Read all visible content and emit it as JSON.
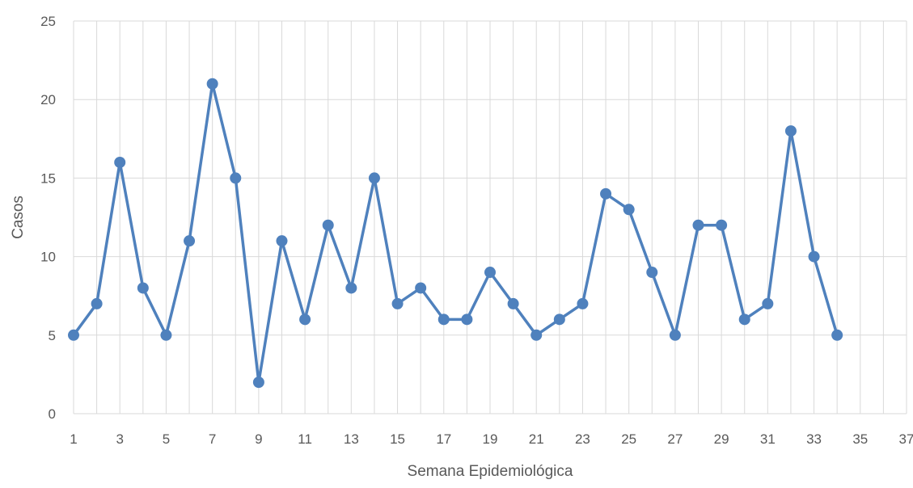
{
  "chart_data": {
    "type": "line",
    "title": "",
    "xlabel": "Semana Epidemiológica",
    "ylabel": "Casos",
    "xlim": [
      1,
      37
    ],
    "ylim": [
      0,
      25
    ],
    "x_ticks": [
      "1",
      "3",
      "5",
      "7",
      "9",
      "11",
      "13",
      "15",
      "17",
      "19",
      "21",
      "23",
      "25",
      "27",
      "29",
      "31",
      "33",
      "35",
      "37"
    ],
    "y_ticks": [
      "0",
      "5",
      "10",
      "15",
      "20",
      "25"
    ],
    "grid": true,
    "legend": "none",
    "line_color": "#4F81BD",
    "series": [
      {
        "x": [
          1,
          2,
          3,
          4,
          5,
          6,
          7,
          8,
          9,
          10,
          11,
          12,
          13,
          14,
          15,
          16,
          17,
          18,
          19,
          20,
          21,
          22,
          23,
          24,
          25,
          26,
          27,
          28,
          29,
          30,
          31,
          32,
          33,
          34
        ],
        "values": [
          5,
          7,
          16,
          8,
          5,
          11,
          21,
          15,
          2,
          11,
          6,
          12,
          8,
          15,
          7,
          8,
          6,
          6,
          9,
          7,
          5,
          6,
          7,
          14,
          13,
          9,
          5,
          12,
          12,
          6,
          7,
          18,
          10,
          5
        ]
      }
    ]
  }
}
